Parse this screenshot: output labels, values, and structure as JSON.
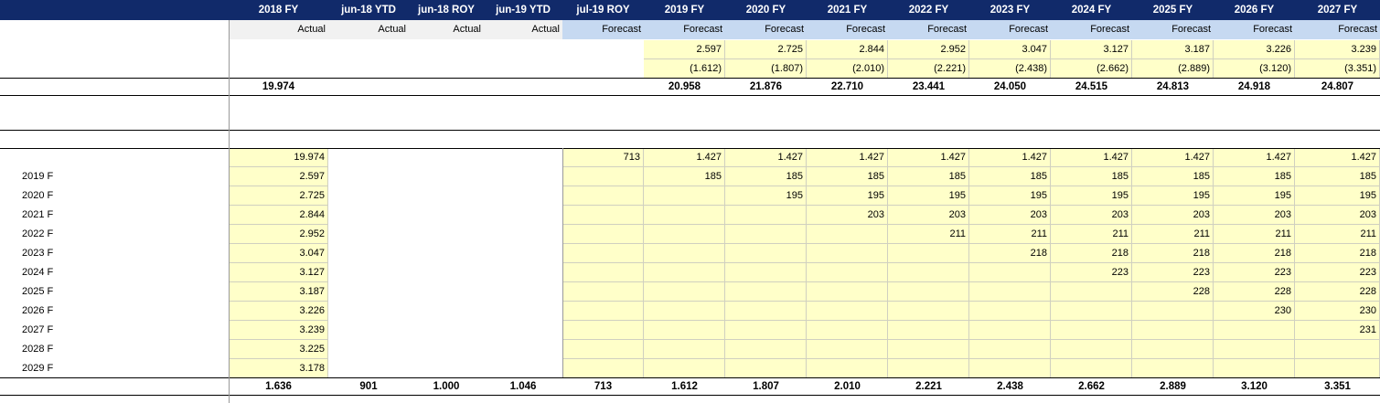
{
  "columns": [
    "2018 FY",
    "jun-18 YTD",
    "jun-18 ROY",
    "jun-19 YTD",
    "jul-19 ROY",
    "2019 FY",
    "2020 FY",
    "2021 FY",
    "2022 FY",
    "2023 FY",
    "2024 FY",
    "2025 FY",
    "2026 FY",
    "2027 FY"
  ],
  "types": [
    "Actual",
    "Actual",
    "Actual",
    "Actual",
    "Forecast",
    "Forecast",
    "Forecast",
    "Forecast",
    "Forecast",
    "Forecast",
    "Forecast",
    "Forecast",
    "Forecast",
    "Forecast"
  ],
  "row_a": [
    "",
    "",
    "",
    "",
    "",
    "2.597",
    "2.725",
    "2.844",
    "2.952",
    "3.047",
    "3.127",
    "3.187",
    "3.226",
    "3.239"
  ],
  "row_b": [
    "",
    "",
    "",
    "",
    "",
    "(1.612)",
    "(1.807)",
    "(2.010)",
    "(2.221)",
    "(2.438)",
    "(2.662)",
    "(2.889)",
    "(3.120)",
    "(3.351)"
  ],
  "totals_top": [
    "19.974",
    "",
    "",
    "",
    "",
    "20.958",
    "21.876",
    "22.710",
    "23.441",
    "24.050",
    "24.515",
    "24.813",
    "24.918",
    "24.807"
  ],
  "matrix": [
    {
      "label": "",
      "values": [
        "19.974",
        "",
        "",
        "",
        "713",
        "1.427",
        "1.427",
        "1.427",
        "1.427",
        "1.427",
        "1.427",
        "1.427",
        "1.427",
        "1.427"
      ]
    },
    {
      "label": "2019 F",
      "values": [
        "2.597",
        "",
        "",
        "",
        "",
        "185",
        "185",
        "185",
        "185",
        "185",
        "185",
        "185",
        "185",
        "185"
      ]
    },
    {
      "label": "2020 F",
      "values": [
        "2.725",
        "",
        "",
        "",
        "",
        "",
        "195",
        "195",
        "195",
        "195",
        "195",
        "195",
        "195",
        "195"
      ]
    },
    {
      "label": "2021 F",
      "values": [
        "2.844",
        "",
        "",
        "",
        "",
        "",
        "",
        "203",
        "203",
        "203",
        "203",
        "203",
        "203",
        "203"
      ]
    },
    {
      "label": "2022 F",
      "values": [
        "2.952",
        "",
        "",
        "",
        "",
        "",
        "",
        "",
        "211",
        "211",
        "211",
        "211",
        "211",
        "211"
      ]
    },
    {
      "label": "2023 F",
      "values": [
        "3.047",
        "",
        "",
        "",
        "",
        "",
        "",
        "",
        "",
        "218",
        "218",
        "218",
        "218",
        "218"
      ]
    },
    {
      "label": "2024 F",
      "values": [
        "3.127",
        "",
        "",
        "",
        "",
        "",
        "",
        "",
        "",
        "",
        "223",
        "223",
        "223",
        "223"
      ]
    },
    {
      "label": "2025 F",
      "values": [
        "3.187",
        "",
        "",
        "",
        "",
        "",
        "",
        "",
        "",
        "",
        "",
        "228",
        "228",
        "228"
      ]
    },
    {
      "label": "2026 F",
      "values": [
        "3.226",
        "",
        "",
        "",
        "",
        "",
        "",
        "",
        "",
        "",
        "",
        "",
        "230",
        "230"
      ]
    },
    {
      "label": "2027 F",
      "values": [
        "3.239",
        "",
        "",
        "",
        "",
        "",
        "",
        "",
        "",
        "",
        "",
        "",
        "",
        "231"
      ]
    },
    {
      "label": "2028 F",
      "values": [
        "3.225",
        "",
        "",
        "",
        "",
        "",
        "",
        "",
        "",
        "",
        "",
        "",
        "",
        ""
      ]
    },
    {
      "label": "2029 F",
      "values": [
        "3.178",
        "",
        "",
        "",
        "",
        "",
        "",
        "",
        "",
        "",
        "",
        "",
        "",
        ""
      ]
    }
  ],
  "totals_bottom": [
    "1.636",
    "901",
    "1.000",
    "1.046",
    "713",
    "1.612",
    "1.807",
    "2.010",
    "2.221",
    "2.438",
    "2.662",
    "2.889",
    "3.120",
    "3.351"
  ],
  "colors": {
    "header_bg": "#112a6a",
    "forecast_bg": "#c6d9f1",
    "actual_bg": "#f1f1f1",
    "input_bg": "#ffffc9"
  }
}
